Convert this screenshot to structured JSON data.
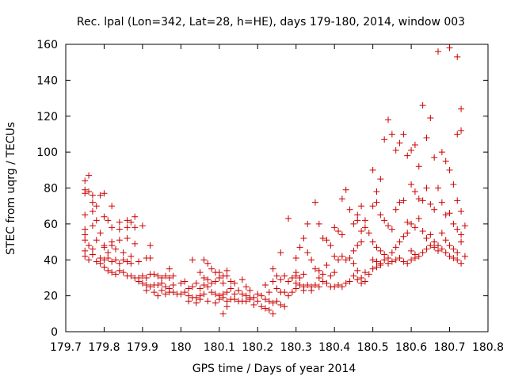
{
  "chart_data": {
    "type": "scatter",
    "title": "Rec. lpal (Lon=342, Lat=28, h=HE), days 179-180, 2014, window 003",
    "xlabel": "GPS time / Days of year 2014",
    "ylabel": "STEC from uqrg / TECUs",
    "xlim": [
      179.7,
      180.8
    ],
    "ylim": [
      0,
      160
    ],
    "xticks": [
      179.7,
      179.8,
      179.9,
      180,
      180.1,
      180.2,
      180.3,
      180.4,
      180.5,
      180.6,
      180.7,
      180.8
    ],
    "xtick_labels": [
      "179.7",
      "179.8",
      "179.9",
      "180",
      "180.1",
      "180.2",
      "180.3",
      "180.4",
      "180.5",
      "180.6",
      "180.7",
      "180.8"
    ],
    "yticks": [
      0,
      20,
      40,
      60,
      80,
      100,
      120,
      140,
      160
    ],
    "ytick_labels": [
      "0",
      "20",
      "40",
      "60",
      "80",
      "100",
      "120",
      "140",
      "160"
    ],
    "grid": false,
    "legend": "none",
    "marker": "plus",
    "color": "#cc0000",
    "points": [
      [
        179.75,
        84
      ],
      [
        179.75,
        79
      ],
      [
        179.76,
        78
      ],
      [
        179.75,
        77
      ],
      [
        179.77,
        76
      ],
      [
        179.79,
        76
      ],
      [
        179.8,
        77
      ],
      [
        179.76,
        87
      ],
      [
        179.77,
        72
      ],
      [
        179.78,
        70
      ],
      [
        179.82,
        70
      ],
      [
        179.75,
        65
      ],
      [
        179.77,
        67
      ],
      [
        179.8,
        64
      ],
      [
        179.78,
        62
      ],
      [
        179.81,
        62
      ],
      [
        179.84,
        61
      ],
      [
        179.86,
        62
      ],
      [
        179.87,
        61
      ],
      [
        179.88,
        64
      ],
      [
        179.9,
        59
      ],
      [
        179.75,
        57
      ],
      [
        179.77,
        59
      ],
      [
        179.79,
        55
      ],
      [
        179.82,
        58
      ],
      [
        179.84,
        57
      ],
      [
        179.86,
        58
      ],
      [
        179.88,
        58
      ],
      [
        179.75,
        54
      ],
      [
        179.75,
        51
      ],
      [
        179.78,
        51
      ],
      [
        179.8,
        48
      ],
      [
        179.82,
        50
      ],
      [
        179.84,
        51
      ],
      [
        179.86,
        52
      ],
      [
        179.88,
        49
      ],
      [
        179.76,
        48
      ],
      [
        179.77,
        46
      ],
      [
        179.8,
        47
      ],
      [
        179.82,
        48
      ],
      [
        179.75,
        45
      ],
      [
        179.77,
        43
      ],
      [
        179.79,
        41
      ],
      [
        179.81,
        44
      ],
      [
        179.83,
        46
      ],
      [
        179.85,
        44
      ],
      [
        179.87,
        42
      ],
      [
        179.75,
        42
      ],
      [
        179.76,
        40
      ],
      [
        179.78,
        39
      ],
      [
        179.79,
        38
      ],
      [
        179.8,
        40
      ],
      [
        179.81,
        41
      ],
      [
        179.82,
        39
      ],
      [
        179.83,
        40
      ],
      [
        179.84,
        38
      ],
      [
        179.85,
        40
      ],
      [
        179.86,
        39
      ],
      [
        179.87,
        38
      ],
      [
        179.89,
        39
      ],
      [
        179.91,
        41
      ],
      [
        179.92,
        41
      ],
      [
        179.8,
        36
      ],
      [
        179.81,
        34
      ],
      [
        179.82,
        33
      ],
      [
        179.83,
        32
      ],
      [
        179.84,
        34
      ],
      [
        179.85,
        33
      ],
      [
        179.86,
        31
      ],
      [
        179.87,
        31
      ],
      [
        179.88,
        30
      ],
      [
        179.89,
        30
      ],
      [
        179.9,
        31
      ],
      [
        179.91,
        30
      ],
      [
        179.92,
        32
      ],
      [
        179.93,
        32
      ],
      [
        179.94,
        31
      ],
      [
        179.95,
        30
      ],
      [
        179.96,
        31
      ],
      [
        179.97,
        30
      ],
      [
        179.98,
        31
      ],
      [
        179.89,
        28
      ],
      [
        179.9,
        27
      ],
      [
        179.91,
        26
      ],
      [
        179.92,
        25
      ],
      [
        179.93,
        26
      ],
      [
        179.94,
        26
      ],
      [
        179.95,
        27
      ],
      [
        179.96,
        25
      ],
      [
        179.97,
        24
      ],
      [
        179.98,
        26
      ],
      [
        179.91,
        23
      ],
      [
        179.93,
        22
      ],
      [
        179.95,
        23
      ],
      [
        179.97,
        22
      ],
      [
        179.98,
        22
      ],
      [
        179.99,
        21
      ],
      [
        179.94,
        20
      ],
      [
        179.96,
        21
      ],
      [
        179.92,
        48
      ],
      [
        179.97,
        35
      ],
      [
        180.0,
        27
      ],
      [
        180.01,
        28
      ],
      [
        180.02,
        24
      ],
      [
        180.0,
        21
      ],
      [
        180.01,
        22
      ],
      [
        180.02,
        20
      ],
      [
        180.03,
        19
      ],
      [
        180.04,
        19
      ],
      [
        180.05,
        20
      ],
      [
        180.06,
        21
      ],
      [
        180.03,
        25
      ],
      [
        180.04,
        27
      ],
      [
        180.05,
        24
      ],
      [
        180.06,
        26
      ],
      [
        180.07,
        25
      ],
      [
        180.08,
        27
      ],
      [
        180.09,
        28
      ],
      [
        180.1,
        30
      ],
      [
        180.11,
        27
      ],
      [
        180.12,
        31
      ],
      [
        180.02,
        17
      ],
      [
        180.04,
        16
      ],
      [
        180.05,
        18
      ],
      [
        180.07,
        17
      ],
      [
        180.09,
        16
      ],
      [
        180.03,
        40
      ],
      [
        180.06,
        40
      ],
      [
        180.07,
        38
      ],
      [
        180.05,
        33
      ],
      [
        180.08,
        35
      ],
      [
        180.09,
        33
      ],
      [
        180.1,
        33
      ],
      [
        180.11,
        31
      ],
      [
        180.12,
        34
      ],
      [
        180.06,
        30
      ],
      [
        180.07,
        29
      ],
      [
        180.08,
        22
      ],
      [
        180.09,
        21
      ],
      [
        180.1,
        20
      ],
      [
        180.11,
        21
      ],
      [
        180.12,
        22
      ],
      [
        180.13,
        24
      ],
      [
        180.14,
        21
      ],
      [
        180.15,
        23
      ],
      [
        180.1,
        18
      ],
      [
        180.11,
        19
      ],
      [
        180.12,
        17
      ],
      [
        180.13,
        18
      ],
      [
        180.14,
        18
      ],
      [
        180.15,
        17
      ],
      [
        180.16,
        17
      ],
      [
        180.17,
        17
      ],
      [
        180.18,
        18
      ],
      [
        180.12,
        14
      ],
      [
        180.11,
        10
      ],
      [
        180.13,
        28
      ],
      [
        180.14,
        27
      ],
      [
        180.16,
        29
      ],
      [
        180.17,
        25
      ],
      [
        180.18,
        23
      ],
      [
        180.16,
        21
      ],
      [
        180.17,
        20
      ],
      [
        180.18,
        19
      ],
      [
        180.19,
        19
      ],
      [
        180.2,
        17
      ],
      [
        180.19,
        15
      ],
      [
        180.21,
        14
      ],
      [
        180.22,
        13
      ],
      [
        180.23,
        12
      ],
      [
        180.24,
        10
      ],
      [
        180.2,
        21
      ],
      [
        180.21,
        20
      ],
      [
        180.22,
        18
      ],
      [
        180.23,
        17
      ],
      [
        180.24,
        16
      ],
      [
        180.25,
        17
      ],
      [
        180.26,
        15
      ],
      [
        180.27,
        14
      ],
      [
        180.25,
        24
      ],
      [
        180.26,
        22
      ],
      [
        180.27,
        22
      ],
      [
        180.28,
        20
      ],
      [
        180.29,
        22
      ],
      [
        180.24,
        35
      ],
      [
        180.25,
        31
      ],
      [
        180.26,
        29
      ],
      [
        180.27,
        31
      ],
      [
        180.28,
        28
      ],
      [
        180.29,
        30
      ],
      [
        180.3,
        33
      ],
      [
        180.26,
        44
      ],
      [
        180.28,
        63
      ],
      [
        180.24,
        28
      ],
      [
        180.22,
        26
      ],
      [
        180.23,
        22
      ],
      [
        180.3,
        31
      ],
      [
        180.31,
        30
      ],
      [
        180.32,
        32
      ],
      [
        180.3,
        27
      ],
      [
        180.31,
        26
      ],
      [
        180.32,
        25
      ],
      [
        180.33,
        26
      ],
      [
        180.34,
        25
      ],
      [
        180.35,
        26
      ],
      [
        180.36,
        25
      ],
      [
        180.3,
        24
      ],
      [
        180.32,
        23
      ],
      [
        180.34,
        23
      ],
      [
        180.3,
        41
      ],
      [
        180.31,
        47
      ],
      [
        180.32,
        52
      ],
      [
        180.33,
        44
      ],
      [
        180.34,
        40
      ],
      [
        180.35,
        35
      ],
      [
        180.36,
        34
      ],
      [
        180.37,
        32
      ],
      [
        180.38,
        37
      ],
      [
        180.33,
        60
      ],
      [
        180.35,
        72
      ],
      [
        180.36,
        60
      ],
      [
        180.37,
        52
      ],
      [
        180.38,
        51
      ],
      [
        180.39,
        48
      ],
      [
        180.36,
        30
      ],
      [
        180.37,
        28
      ],
      [
        180.38,
        27
      ],
      [
        180.39,
        31
      ],
      [
        180.4,
        33
      ],
      [
        180.39,
        25
      ],
      [
        180.4,
        25
      ],
      [
        180.41,
        26
      ],
      [
        180.42,
        25
      ],
      [
        180.43,
        27
      ],
      [
        180.44,
        28
      ],
      [
        180.4,
        58
      ],
      [
        180.41,
        56
      ],
      [
        180.42,
        54
      ],
      [
        180.42,
        74
      ],
      [
        180.43,
        79
      ],
      [
        180.44,
        68
      ],
      [
        180.4,
        42
      ],
      [
        180.41,
        40
      ],
      [
        180.42,
        42
      ],
      [
        180.43,
        40
      ],
      [
        180.44,
        41
      ],
      [
        180.45,
        45
      ],
      [
        180.46,
        48
      ],
      [
        180.47,
        50
      ],
      [
        180.45,
        38
      ],
      [
        180.46,
        34
      ],
      [
        180.47,
        30
      ],
      [
        180.48,
        33
      ],
      [
        180.49,
        32
      ],
      [
        180.45,
        31
      ],
      [
        180.46,
        29
      ],
      [
        180.47,
        27
      ],
      [
        180.48,
        28
      ],
      [
        180.45,
        60
      ],
      [
        180.46,
        62
      ],
      [
        180.47,
        56
      ],
      [
        180.48,
        58
      ],
      [
        180.49,
        55
      ],
      [
        180.46,
        65
      ],
      [
        180.47,
        70
      ],
      [
        180.48,
        62
      ],
      [
        180.5,
        90
      ],
      [
        180.51,
        78
      ],
      [
        180.52,
        85
      ],
      [
        180.53,
        107
      ],
      [
        180.54,
        118
      ],
      [
        180.55,
        110
      ],
      [
        180.56,
        101
      ],
      [
        180.57,
        105
      ],
      [
        180.58,
        110
      ],
      [
        180.59,
        98
      ],
      [
        180.5,
        70
      ],
      [
        180.51,
        72
      ],
      [
        180.52,
        65
      ],
      [
        180.53,
        62
      ],
      [
        180.54,
        59
      ],
      [
        180.55,
        57
      ],
      [
        180.56,
        68
      ],
      [
        180.57,
        72
      ],
      [
        180.58,
        73
      ],
      [
        180.59,
        61
      ],
      [
        180.5,
        50
      ],
      [
        180.51,
        47
      ],
      [
        180.52,
        45
      ],
      [
        180.53,
        43
      ],
      [
        180.54,
        41
      ],
      [
        180.55,
        44
      ],
      [
        180.56,
        47
      ],
      [
        180.57,
        50
      ],
      [
        180.58,
        53
      ],
      [
        180.59,
        55
      ],
      [
        180.5,
        40
      ],
      [
        180.51,
        39
      ],
      [
        180.52,
        38
      ],
      [
        180.53,
        40
      ],
      [
        180.54,
        38
      ],
      [
        180.55,
        39
      ],
      [
        180.56,
        40
      ],
      [
        180.57,
        41
      ],
      [
        180.58,
        39
      ],
      [
        180.59,
        38
      ],
      [
        180.5,
        35
      ],
      [
        180.51,
        36
      ],
      [
        180.52,
        37
      ],
      [
        180.6,
        101
      ],
      [
        180.61,
        104
      ],
      [
        180.62,
        92
      ],
      [
        180.63,
        126
      ],
      [
        180.64,
        108
      ],
      [
        180.65,
        119
      ],
      [
        180.66,
        97
      ],
      [
        180.67,
        156
      ],
      [
        180.68,
        100
      ],
      [
        180.69,
        95
      ],
      [
        180.6,
        82
      ],
      [
        180.61,
        78
      ],
      [
        180.62,
        74
      ],
      [
        180.63,
        73
      ],
      [
        180.64,
        80
      ],
      [
        180.65,
        71
      ],
      [
        180.66,
        68
      ],
      [
        180.67,
        80
      ],
      [
        180.68,
        72
      ],
      [
        180.69,
        65
      ],
      [
        180.6,
        60
      ],
      [
        180.61,
        58
      ],
      [
        180.62,
        63
      ],
      [
        180.63,
        56
      ],
      [
        180.64,
        52
      ],
      [
        180.65,
        54
      ],
      [
        180.66,
        50
      ],
      [
        180.67,
        48
      ],
      [
        180.68,
        55
      ],
      [
        180.69,
        51
      ],
      [
        180.6,
        45
      ],
      [
        180.61,
        43
      ],
      [
        180.62,
        42
      ],
      [
        180.63,
        44
      ],
      [
        180.64,
        46
      ],
      [
        180.65,
        48
      ],
      [
        180.66,
        47
      ],
      [
        180.67,
        45
      ],
      [
        180.68,
        46
      ],
      [
        180.69,
        44
      ],
      [
        180.6,
        40
      ],
      [
        180.61,
        41
      ],
      [
        180.7,
        158
      ],
      [
        180.72,
        153
      ],
      [
        180.72,
        110
      ],
      [
        180.73,
        124
      ],
      [
        180.73,
        112
      ],
      [
        180.7,
        90
      ],
      [
        180.71,
        82
      ],
      [
        180.72,
        73
      ],
      [
        180.73,
        67
      ],
      [
        180.7,
        66
      ],
      [
        180.71,
        60
      ],
      [
        180.72,
        57
      ],
      [
        180.73,
        54
      ],
      [
        180.7,
        48
      ],
      [
        180.71,
        46
      ],
      [
        180.72,
        44
      ],
      [
        180.73,
        50
      ],
      [
        180.7,
        42
      ],
      [
        180.71,
        41
      ],
      [
        180.72,
        40
      ],
      [
        180.73,
        38
      ],
      [
        180.74,
        42
      ],
      [
        180.74,
        59
      ]
    ]
  }
}
